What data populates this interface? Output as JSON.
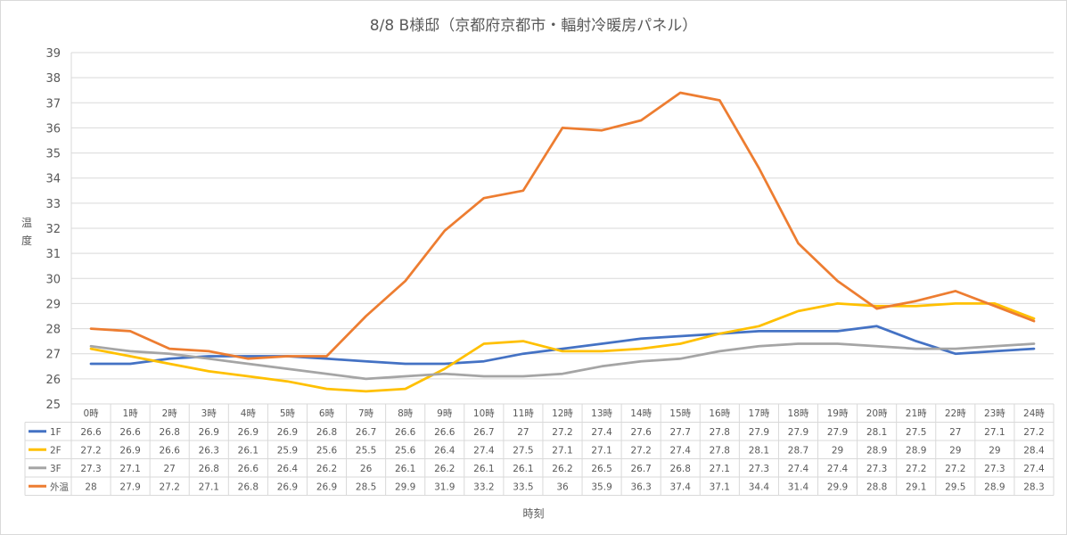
{
  "chart_data": {
    "type": "line",
    "title": "8/8 B様邸（京都府京都市・輻射冷暖房パネル）",
    "xlabel": "時刻",
    "ylabel": "温度",
    "ylim": [
      25,
      39
    ],
    "ytick_step": 1,
    "grid": true,
    "legend": "data-table",
    "categories": [
      "0時",
      "1時",
      "2時",
      "3時",
      "4時",
      "5時",
      "6時",
      "7時",
      "8時",
      "9時",
      "10時",
      "11時",
      "12時",
      "13時",
      "14時",
      "15時",
      "16時",
      "17時",
      "18時",
      "19時",
      "20時",
      "21時",
      "22時",
      "23時",
      "24時"
    ],
    "series": [
      {
        "name": "1F",
        "color": "#4472c4",
        "values": [
          26.6,
          26.6,
          26.8,
          26.9,
          26.9,
          26.9,
          26.8,
          26.7,
          26.6,
          26.6,
          26.7,
          27,
          27.2,
          27.4,
          27.6,
          27.7,
          27.8,
          27.9,
          27.9,
          27.9,
          28.1,
          27.5,
          27,
          27.1,
          27.2
        ]
      },
      {
        "name": "2F",
        "color": "#ffc000",
        "values": [
          27.2,
          26.9,
          26.6,
          26.3,
          26.1,
          25.9,
          25.6,
          25.5,
          25.6,
          26.4,
          27.4,
          27.5,
          27.1,
          27.1,
          27.2,
          27.4,
          27.8,
          28.1,
          28.7,
          29,
          28.9,
          28.9,
          29,
          29,
          28.4
        ]
      },
      {
        "name": "3F",
        "color": "#a5a5a5",
        "values": [
          27.3,
          27.1,
          27,
          26.8,
          26.6,
          26.4,
          26.2,
          26,
          26.1,
          26.2,
          26.1,
          26.1,
          26.2,
          26.5,
          26.7,
          26.8,
          27.1,
          27.3,
          27.4,
          27.4,
          27.3,
          27.2,
          27.2,
          27.3,
          27.4
        ]
      },
      {
        "name": "外温",
        "color": "#ed7d31",
        "values": [
          28,
          27.9,
          27.2,
          27.1,
          26.8,
          26.9,
          26.9,
          28.5,
          29.9,
          31.9,
          33.2,
          33.5,
          36,
          35.9,
          36.3,
          37.4,
          37.1,
          34.4,
          31.4,
          29.9,
          28.8,
          29.1,
          29.5,
          28.9,
          28.3
        ]
      }
    ]
  }
}
